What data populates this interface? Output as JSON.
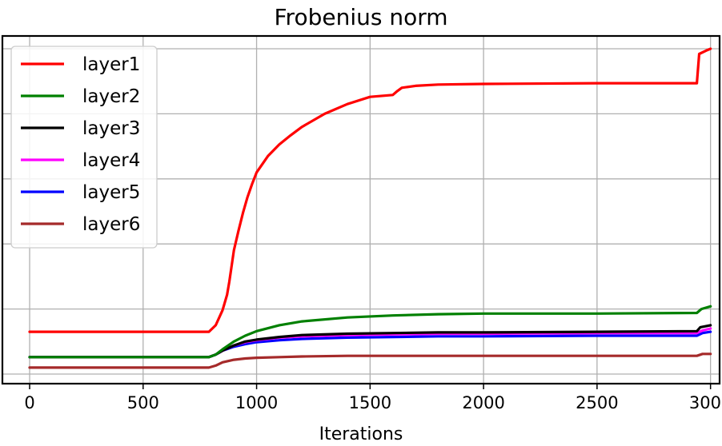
{
  "chart_data": {
    "type": "line",
    "title": "Frobenius norm",
    "xlabel": "Iterations",
    "ylabel": "",
    "xlim": [
      -120,
      3040
    ],
    "ylim": [
      0.0,
      5.0
    ],
    "xticks": [
      0,
      500,
      1000,
      1500,
      2000,
      2500,
      3000
    ],
    "xtick_labels": [
      "0",
      "500",
      "1000",
      "1500",
      "2000",
      "2500",
      "3000"
    ],
    "ygrid_values": [
      0,
      1,
      2,
      3,
      4,
      5
    ],
    "ytick_labels_visible": false,
    "grid": true,
    "legend_position": "top-left",
    "series": [
      {
        "name": "layer1",
        "color": "#ff0000",
        "x": [
          0,
          790,
          820,
          850,
          870,
          880,
          900,
          920,
          940,
          960,
          980,
          1000,
          1050,
          1100,
          1150,
          1200,
          1300,
          1400,
          1500,
          1600,
          1620,
          1640,
          1700,
          1800,
          2000,
          2500,
          2900,
          2940,
          2950,
          2980,
          3000
        ],
        "y": [
          0.65,
          0.65,
          0.75,
          0.98,
          1.22,
          1.42,
          1.9,
          2.2,
          2.48,
          2.72,
          2.92,
          3.1,
          3.35,
          3.53,
          3.67,
          3.8,
          4.0,
          4.15,
          4.26,
          4.29,
          4.35,
          4.4,
          4.43,
          4.45,
          4.46,
          4.47,
          4.47,
          4.47,
          4.92,
          4.97,
          5.0
        ]
      },
      {
        "name": "layer2",
        "color": "#008000",
        "x": [
          0,
          790,
          820,
          850,
          900,
          950,
          1000,
          1100,
          1200,
          1400,
          1600,
          1800,
          2000,
          2500,
          2940,
          2960,
          3000
        ],
        "y": [
          0.26,
          0.26,
          0.3,
          0.38,
          0.5,
          0.59,
          0.66,
          0.75,
          0.81,
          0.87,
          0.9,
          0.92,
          0.93,
          0.93,
          0.94,
          1.0,
          1.04
        ]
      },
      {
        "name": "layer3",
        "color": "#000000",
        "x": [
          0,
          790,
          820,
          850,
          900,
          950,
          1000,
          1100,
          1200,
          1400,
          1600,
          1800,
          2000,
          2500,
          2940,
          2955,
          3000
        ],
        "y": [
          0.26,
          0.26,
          0.3,
          0.36,
          0.44,
          0.5,
          0.53,
          0.57,
          0.6,
          0.62,
          0.63,
          0.64,
          0.64,
          0.65,
          0.66,
          0.72,
          0.75
        ]
      },
      {
        "name": "layer4",
        "color": "#ff00ff",
        "x": [
          0,
          790,
          820,
          850,
          900,
          950,
          1000,
          1100,
          1200,
          1400,
          1600,
          1800,
          2000,
          2500,
          2940,
          2965,
          3000
        ],
        "y": [
          0.26,
          0.26,
          0.3,
          0.36,
          0.44,
          0.49,
          0.52,
          0.56,
          0.58,
          0.6,
          0.61,
          0.62,
          0.62,
          0.63,
          0.63,
          0.67,
          0.7
        ]
      },
      {
        "name": "layer5",
        "color": "#0000ff",
        "x": [
          0,
          790,
          820,
          850,
          900,
          950,
          1000,
          1100,
          1200,
          1400,
          1600,
          1800,
          2000,
          2500,
          2940,
          2965,
          3000
        ],
        "y": [
          0.26,
          0.26,
          0.3,
          0.36,
          0.42,
          0.46,
          0.49,
          0.52,
          0.54,
          0.56,
          0.57,
          0.58,
          0.58,
          0.59,
          0.59,
          0.63,
          0.65
        ]
      },
      {
        "name": "layer6",
        "color": "#a52a2a",
        "x": [
          0,
          790,
          820,
          850,
          900,
          950,
          1000,
          1100,
          1200,
          1400,
          1600,
          1800,
          2000,
          2500,
          2940,
          2965,
          3000
        ],
        "y": [
          0.1,
          0.1,
          0.13,
          0.18,
          0.22,
          0.24,
          0.25,
          0.26,
          0.27,
          0.28,
          0.28,
          0.28,
          0.28,
          0.28,
          0.28,
          0.31,
          0.31
        ]
      }
    ]
  }
}
